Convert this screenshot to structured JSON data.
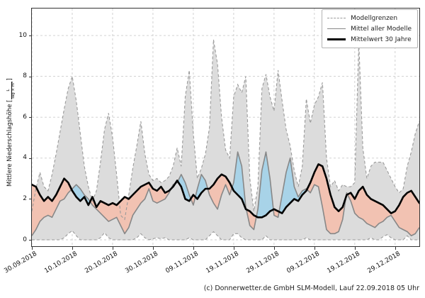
{
  "caption": "(c) Donnerwetter.de GmbH SLM-Modell, Lauf 22.09.2018 05 Uhr",
  "chart_data": {
    "type": "area",
    "title": "",
    "ylabel_prefix": "Mittlere Niederschlagshöhe [",
    "ylabel_frac_num": "L",
    "ylabel_frac_den": "Tag × m²",
    "ylabel_suffix": "]",
    "xlabel": "",
    "y_ticks": [
      0,
      2,
      4,
      6,
      8,
      10
    ],
    "ylim": [
      -0.3125,
      11.32
    ],
    "grid": "dashed",
    "x_tick_labels": [
      "30.09.2018",
      "10.10.2018",
      "20.10.2018",
      "30.10.2018",
      "09.11.2018",
      "19.11.2018",
      "29.11.2018",
      "09.12.2018",
      "19.12.2018",
      "29.12.2018"
    ],
    "x_tick_days": [
      0,
      10,
      20,
      30,
      40,
      50,
      60,
      70,
      80,
      90
    ],
    "days_total": 96,
    "legend_position": "top-right",
    "legend": [
      {
        "label": "Modellgrenzen",
        "style": "dashed-gray"
      },
      {
        "label": "Mittel aller Modelle",
        "style": "solid-gray"
      },
      {
        "label": "Mittelwert 30 Jahre",
        "style": "thick-black"
      }
    ],
    "colors": {
      "band_fill": "#dcdcdc",
      "band_edge": "#9a9a9a",
      "grid": "#cccccc",
      "mean_line": "#878787",
      "norm_line": "#000000",
      "above_fill": "#a8d3e8",
      "below_fill": "#f2c2b2"
    },
    "series": [
      {
        "name": "model_max",
        "label": "Modellgrenzen (oben)",
        "values": [
          1.4,
          2.5,
          3.3,
          2.6,
          2.4,
          3.2,
          4.2,
          5.3,
          6.4,
          7.4,
          8.0,
          6.8,
          5.2,
          3.6,
          2.6,
          1.9,
          2.4,
          3.8,
          5.4,
          6.2,
          5.0,
          3.2,
          1.2,
          1.0,
          2.2,
          3.5,
          4.6,
          5.8,
          4.2,
          3.2,
          2.9,
          3.0,
          2.8,
          2.9,
          3.1,
          3.6,
          4.5,
          3.6,
          7.0,
          8.3,
          5.2,
          3.0,
          3.5,
          4.2,
          5.5,
          9.8,
          8.6,
          6.0,
          4.4,
          4.0,
          7.0,
          7.6,
          7.2,
          8.0,
          3.0,
          1.4,
          2.6,
          7.4,
          8.1,
          7.0,
          6.3,
          8.3,
          6.8,
          5.4,
          4.6,
          3.4,
          2.6,
          3.6,
          6.9,
          5.7,
          6.6,
          7.0,
          7.7,
          4.0,
          2.6,
          2.9,
          2.4,
          2.7,
          2.6,
          2.6,
          2.8,
          9.7,
          4.5,
          3.0,
          3.6,
          3.8,
          3.8,
          3.8,
          3.4,
          3.0,
          2.6,
          2.3,
          2.5,
          3.6,
          4.3,
          5.2,
          5.8
        ]
      },
      {
        "name": "model_min",
        "label": "Modellgrenzen (unten)",
        "values": [
          0,
          0,
          0,
          0,
          0,
          0,
          0,
          0,
          0.1,
          0.3,
          0.45,
          0.2,
          0,
          0,
          0,
          0,
          0,
          0.1,
          0.35,
          0.1,
          0,
          0,
          0,
          0,
          0,
          0,
          0.1,
          0.3,
          0.1,
          0,
          0.05,
          0.1,
          0.05,
          0.1,
          0,
          0,
          0,
          0,
          0,
          0.1,
          0,
          0,
          0,
          0,
          0.2,
          0.4,
          0.2,
          0,
          0,
          0,
          0.3,
          0.3,
          0.1,
          0,
          0,
          0,
          0,
          0,
          0.2,
          0,
          0,
          0,
          0,
          0,
          0,
          0,
          0,
          0,
          0.1,
          0,
          0,
          0,
          0,
          0,
          0,
          0,
          0,
          0,
          0,
          0,
          0,
          0,
          0,
          0,
          0.1,
          0,
          0,
          0.15,
          0.25,
          0.1,
          0,
          0,
          0,
          0.2,
          0,
          0,
          0
        ]
      },
      {
        "name": "model_mean",
        "label": "Mittel aller Modelle",
        "values": [
          0.2,
          0.5,
          0.9,
          1.1,
          1.2,
          1.1,
          1.5,
          1.9,
          2.0,
          2.3,
          2.5,
          2.7,
          2.5,
          2.2,
          2.0,
          1.7,
          1.5,
          1.3,
          1.1,
          0.9,
          1.0,
          1.1,
          0.7,
          0.3,
          0.6,
          1.2,
          1.5,
          1.8,
          2.0,
          2.5,
          1.9,
          1.8,
          1.9,
          2.0,
          2.3,
          2.7,
          2.8,
          3.2,
          2.8,
          2.2,
          1.7,
          2.5,
          3.2,
          2.9,
          2.2,
          1.8,
          1.5,
          2.2,
          2.7,
          2.2,
          2.8,
          4.3,
          3.6,
          1.6,
          0.7,
          0.5,
          1.5,
          3.4,
          4.3,
          3.0,
          1.2,
          1.1,
          2.2,
          3.3,
          4.0,
          2.6,
          2.1,
          2.4,
          2.5,
          2.3,
          2.7,
          2.6,
          1.6,
          0.5,
          0.3,
          0.3,
          0.4,
          1.0,
          2.3,
          1.9,
          1.3,
          1.1,
          1.0,
          0.8,
          0.7,
          0.6,
          0.8,
          0.9,
          1.1,
          1.2,
          0.9,
          0.6,
          0.5,
          0.4,
          0.2,
          0.3,
          0.6
        ]
      },
      {
        "name": "norm_30y",
        "label": "Mittelwert 30 Jahre",
        "values": [
          2.7,
          2.6,
          2.2,
          1.9,
          2.1,
          1.9,
          2.2,
          2.6,
          3.0,
          2.8,
          2.4,
          2.1,
          1.9,
          2.1,
          1.7,
          2.1,
          1.6,
          1.9,
          1.8,
          1.7,
          1.8,
          1.7,
          1.9,
          2.1,
          2.0,
          2.2,
          2.4,
          2.6,
          2.7,
          2.8,
          2.5,
          2.4,
          2.6,
          2.3,
          2.4,
          2.6,
          2.9,
          2.6,
          2.0,
          1.9,
          2.2,
          2.0,
          2.3,
          2.5,
          2.5,
          2.7,
          3.0,
          3.2,
          3.1,
          2.8,
          2.4,
          2.2,
          2.0,
          1.5,
          1.4,
          1.2,
          1.1,
          1.1,
          1.2,
          1.4,
          1.5,
          1.4,
          1.3,
          1.6,
          1.8,
          2.0,
          1.9,
          2.2,
          2.4,
          2.8,
          3.3,
          3.7,
          3.6,
          3.0,
          2.2,
          1.6,
          1.4,
          1.6,
          2.2,
          2.3,
          2.0,
          2.4,
          2.6,
          2.2,
          2.0,
          1.9,
          1.8,
          1.7,
          1.5,
          1.3,
          1.4,
          1.7,
          2.1,
          2.3,
          2.4,
          2.1,
          1.8
        ]
      }
    ]
  }
}
